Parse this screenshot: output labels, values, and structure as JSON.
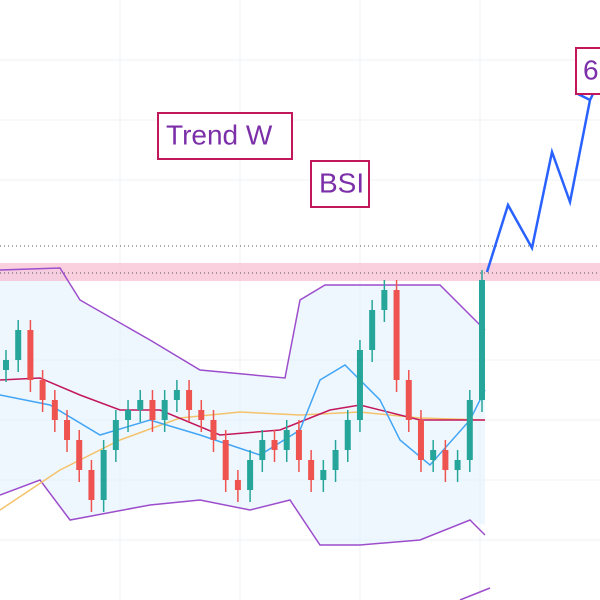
{
  "chart_data": {
    "type": "candlestick",
    "annotations": [
      "Trend W",
      "BSI",
      "6"
    ],
    "ylim": [
      0,
      600
    ],
    "up_color": "#26a69a",
    "down_color": "#ef5350",
    "open": [
      230,
      240,
      270,
      220,
      200,
      180,
      160,
      130,
      100,
      150,
      180,
      190,
      200,
      180,
      200,
      210,
      190,
      180,
      160,
      120,
      110,
      140,
      160,
      150,
      170,
      140,
      120,
      130,
      150,
      180,
      250,
      290,
      310,
      220,
      180,
      140,
      150,
      130,
      140,
      200
    ],
    "high": [
      250,
      280,
      280,
      230,
      210,
      190,
      170,
      140,
      160,
      190,
      200,
      210,
      210,
      210,
      220,
      220,
      200,
      190,
      170,
      130,
      150,
      170,
      170,
      180,
      180,
      150,
      140,
      160,
      190,
      260,
      300,
      320,
      320,
      230,
      190,
      160,
      160,
      150,
      210,
      330
    ],
    "low": [
      218,
      228,
      208,
      188,
      168,
      148,
      118,
      88,
      88,
      138,
      168,
      178,
      168,
      168,
      188,
      178,
      168,
      148,
      108,
      98,
      98,
      128,
      138,
      138,
      128,
      108,
      108,
      118,
      138,
      168,
      238,
      278,
      208,
      168,
      128,
      128,
      118,
      118,
      128,
      188
    ],
    "close": [
      240,
      270,
      220,
      200,
      180,
      160,
      130,
      100,
      150,
      180,
      190,
      200,
      180,
      200,
      210,
      190,
      180,
      160,
      120,
      110,
      140,
      160,
      150,
      170,
      140,
      120,
      130,
      150,
      180,
      250,
      290,
      310,
      220,
      180,
      140,
      150,
      130,
      140,
      200,
      320
    ]
  }
}
